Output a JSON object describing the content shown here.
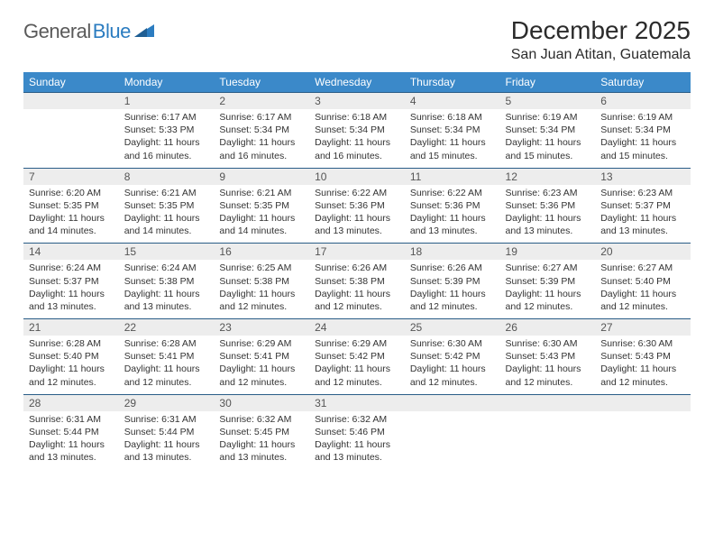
{
  "logo": {
    "word1": "General",
    "word2": "Blue"
  },
  "title": "December 2025",
  "location": "San Juan Atitan, Guatemala",
  "colors": {
    "header_bg": "#3b89c9",
    "header_text": "#ffffff",
    "daynum_bg": "#ededed",
    "border": "#2a5d87",
    "text": "#333333",
    "logo_gray": "#5a5a5a",
    "logo_blue": "#2b7cc0"
  },
  "weekdays": [
    "Sunday",
    "Monday",
    "Tuesday",
    "Wednesday",
    "Thursday",
    "Friday",
    "Saturday"
  ],
  "weeks": [
    {
      "nums": [
        "",
        "1",
        "2",
        "3",
        "4",
        "5",
        "6"
      ],
      "cells": [
        null,
        {
          "sunrise": "6:17 AM",
          "sunset": "5:33 PM",
          "daylight": "11 hours and 16 minutes."
        },
        {
          "sunrise": "6:17 AM",
          "sunset": "5:34 PM",
          "daylight": "11 hours and 16 minutes."
        },
        {
          "sunrise": "6:18 AM",
          "sunset": "5:34 PM",
          "daylight": "11 hours and 16 minutes."
        },
        {
          "sunrise": "6:18 AM",
          "sunset": "5:34 PM",
          "daylight": "11 hours and 15 minutes."
        },
        {
          "sunrise": "6:19 AM",
          "sunset": "5:34 PM",
          "daylight": "11 hours and 15 minutes."
        },
        {
          "sunrise": "6:19 AM",
          "sunset": "5:34 PM",
          "daylight": "11 hours and 15 minutes."
        }
      ]
    },
    {
      "nums": [
        "7",
        "8",
        "9",
        "10",
        "11",
        "12",
        "13"
      ],
      "cells": [
        {
          "sunrise": "6:20 AM",
          "sunset": "5:35 PM",
          "daylight": "11 hours and 14 minutes."
        },
        {
          "sunrise": "6:21 AM",
          "sunset": "5:35 PM",
          "daylight": "11 hours and 14 minutes."
        },
        {
          "sunrise": "6:21 AM",
          "sunset": "5:35 PM",
          "daylight": "11 hours and 14 minutes."
        },
        {
          "sunrise": "6:22 AM",
          "sunset": "5:36 PM",
          "daylight": "11 hours and 13 minutes."
        },
        {
          "sunrise": "6:22 AM",
          "sunset": "5:36 PM",
          "daylight": "11 hours and 13 minutes."
        },
        {
          "sunrise": "6:23 AM",
          "sunset": "5:36 PM",
          "daylight": "11 hours and 13 minutes."
        },
        {
          "sunrise": "6:23 AM",
          "sunset": "5:37 PM",
          "daylight": "11 hours and 13 minutes."
        }
      ]
    },
    {
      "nums": [
        "14",
        "15",
        "16",
        "17",
        "18",
        "19",
        "20"
      ],
      "cells": [
        {
          "sunrise": "6:24 AM",
          "sunset": "5:37 PM",
          "daylight": "11 hours and 13 minutes."
        },
        {
          "sunrise": "6:24 AM",
          "sunset": "5:38 PM",
          "daylight": "11 hours and 13 minutes."
        },
        {
          "sunrise": "6:25 AM",
          "sunset": "5:38 PM",
          "daylight": "11 hours and 12 minutes."
        },
        {
          "sunrise": "6:26 AM",
          "sunset": "5:38 PM",
          "daylight": "11 hours and 12 minutes."
        },
        {
          "sunrise": "6:26 AM",
          "sunset": "5:39 PM",
          "daylight": "11 hours and 12 minutes."
        },
        {
          "sunrise": "6:27 AM",
          "sunset": "5:39 PM",
          "daylight": "11 hours and 12 minutes."
        },
        {
          "sunrise": "6:27 AM",
          "sunset": "5:40 PM",
          "daylight": "11 hours and 12 minutes."
        }
      ]
    },
    {
      "nums": [
        "21",
        "22",
        "23",
        "24",
        "25",
        "26",
        "27"
      ],
      "cells": [
        {
          "sunrise": "6:28 AM",
          "sunset": "5:40 PM",
          "daylight": "11 hours and 12 minutes."
        },
        {
          "sunrise": "6:28 AM",
          "sunset": "5:41 PM",
          "daylight": "11 hours and 12 minutes."
        },
        {
          "sunrise": "6:29 AM",
          "sunset": "5:41 PM",
          "daylight": "11 hours and 12 minutes."
        },
        {
          "sunrise": "6:29 AM",
          "sunset": "5:42 PM",
          "daylight": "11 hours and 12 minutes."
        },
        {
          "sunrise": "6:30 AM",
          "sunset": "5:42 PM",
          "daylight": "11 hours and 12 minutes."
        },
        {
          "sunrise": "6:30 AM",
          "sunset": "5:43 PM",
          "daylight": "11 hours and 12 minutes."
        },
        {
          "sunrise": "6:30 AM",
          "sunset": "5:43 PM",
          "daylight": "11 hours and 12 minutes."
        }
      ]
    },
    {
      "nums": [
        "28",
        "29",
        "30",
        "31",
        "",
        "",
        ""
      ],
      "cells": [
        {
          "sunrise": "6:31 AM",
          "sunset": "5:44 PM",
          "daylight": "11 hours and 13 minutes."
        },
        {
          "sunrise": "6:31 AM",
          "sunset": "5:44 PM",
          "daylight": "11 hours and 13 minutes."
        },
        {
          "sunrise": "6:32 AM",
          "sunset": "5:45 PM",
          "daylight": "11 hours and 13 minutes."
        },
        {
          "sunrise": "6:32 AM",
          "sunset": "5:46 PM",
          "daylight": "11 hours and 13 minutes."
        },
        null,
        null,
        null
      ]
    }
  ],
  "labels": {
    "sunrise": "Sunrise: ",
    "sunset": "Sunset: ",
    "daylight": "Daylight: "
  }
}
